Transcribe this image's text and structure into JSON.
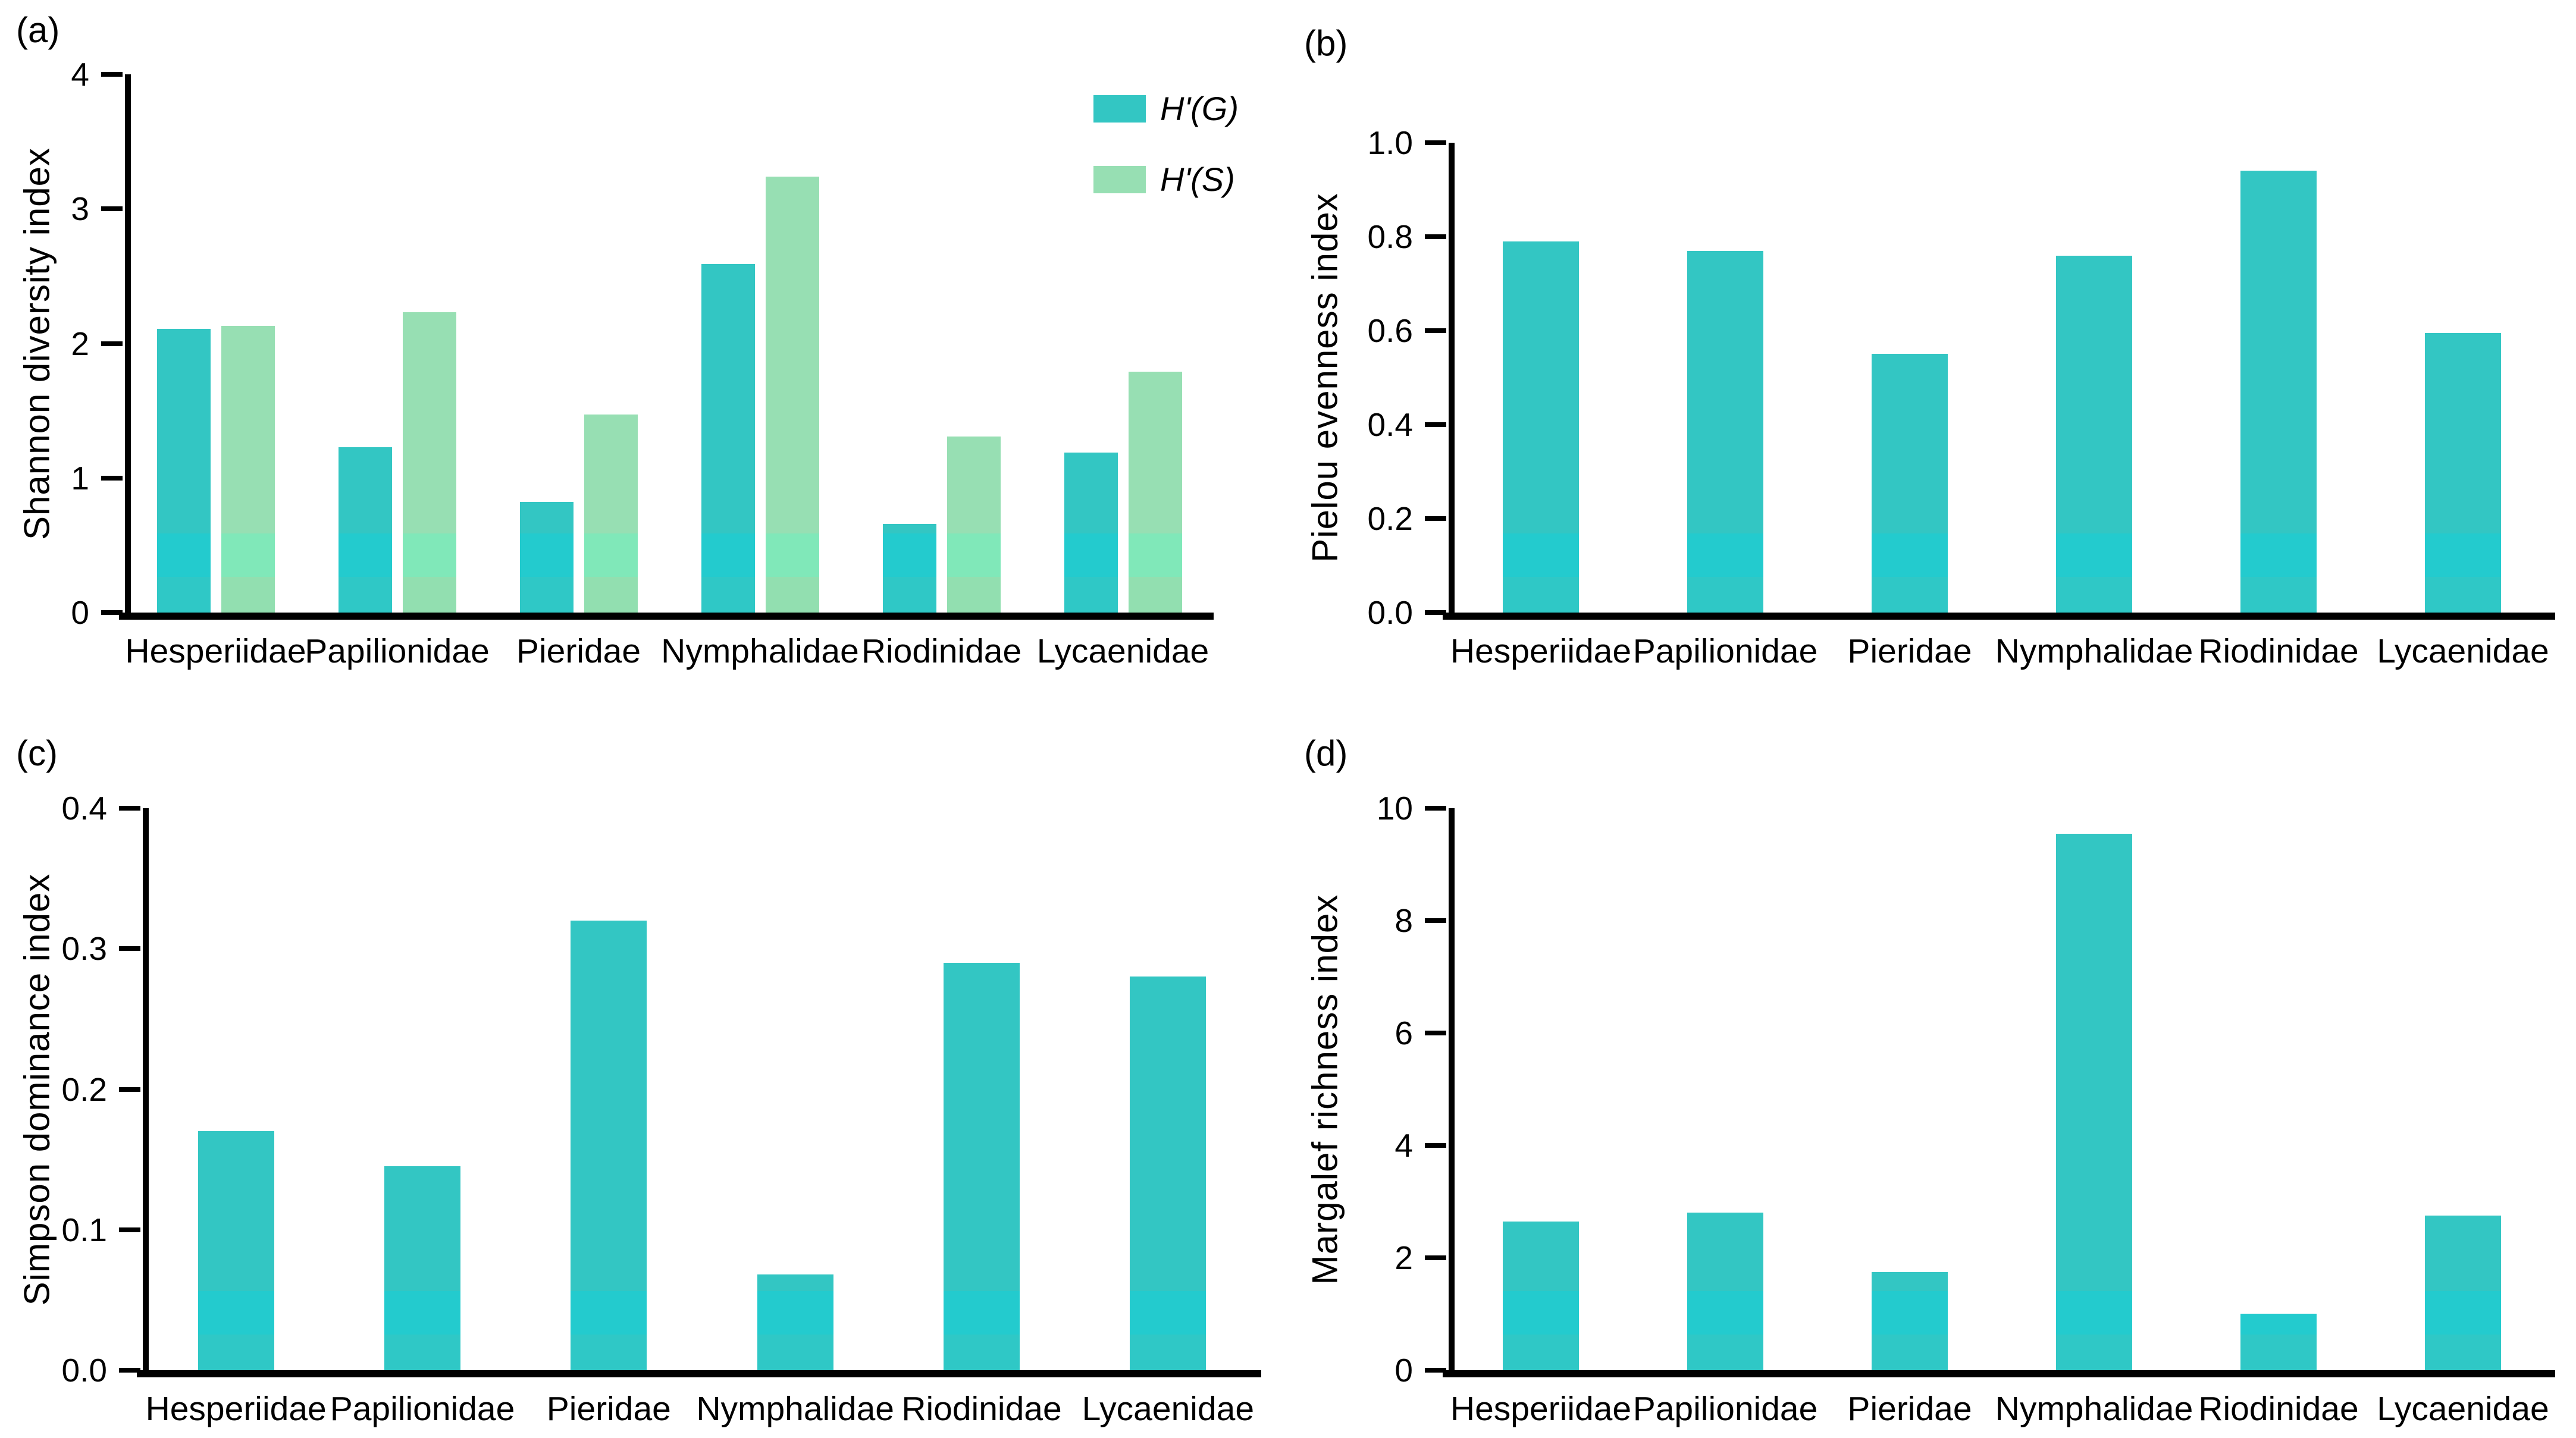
{
  "colors": {
    "teal_main": "#33C6C3",
    "teal_band_bright": "#23CBCE",
    "teal_band_low": "#2FC8C6",
    "green_main": "#97DFB3",
    "green_band_bright": "#80E8B9",
    "green_band_low": "#92DFB0",
    "axis": "#000000",
    "text": "#000000"
  },
  "chart_data": [
    {
      "type": "bar",
      "panel_label": "(a)",
      "ylabel": "Shannon diversity index",
      "xlabel": "",
      "categories": [
        "Hesperiidae",
        "Papilionidae",
        "Pieridae",
        "Nymphalidae",
        "Riodinidae",
        "Lycaenidae"
      ],
      "series": [
        {
          "name": "H'(G)",
          "color_key": "teal",
          "values": [
            2.11,
            1.23,
            0.82,
            2.59,
            0.66,
            1.19
          ]
        },
        {
          "name": "H'(S)",
          "color_key": "green",
          "values": [
            2.13,
            2.23,
            1.47,
            3.24,
            1.31,
            1.79
          ]
        }
      ],
      "ylim": [
        0,
        4
      ],
      "ytick_values": [
        0,
        1,
        2,
        3,
        4
      ],
      "ytick_labels": [
        "0",
        "1",
        "2",
        "3",
        "4"
      ],
      "grid": false,
      "legend_position": "top-right"
    },
    {
      "type": "bar",
      "panel_label": "(b)",
      "ylabel": "Pielou evenness index",
      "xlabel": "",
      "categories": [
        "Hesperiidae",
        "Papilionidae",
        "Pieridae",
        "Nymphalidae",
        "Riodinidae",
        "Lycaenidae"
      ],
      "series": [
        {
          "name": "Pielou evenness",
          "color_key": "teal",
          "values": [
            0.79,
            0.77,
            0.55,
            0.76,
            0.94,
            0.595
          ]
        }
      ],
      "ylim": [
        0,
        1.0
      ],
      "ytick_values": [
        0,
        0.2,
        0.4,
        0.6,
        0.8,
        1.0
      ],
      "ytick_labels": [
        "0.0",
        "0.2",
        "0.4",
        "0.6",
        "0.8",
        "1.0"
      ],
      "grid": false,
      "legend_position": "none"
    },
    {
      "type": "bar",
      "panel_label": "(c)",
      "ylabel": "Simpson dominance index",
      "xlabel": "",
      "categories": [
        "Hesperiidae",
        "Papilionidae",
        "Pieridae",
        "Nymphalidae",
        "Riodinidae",
        "Lycaenidae"
      ],
      "series": [
        {
          "name": "Simpson dominance",
          "color_key": "teal",
          "values": [
            0.17,
            0.145,
            0.32,
            0.068,
            0.29,
            0.28
          ]
        }
      ],
      "ylim": [
        0,
        0.4
      ],
      "ytick_values": [
        0,
        0.1,
        0.2,
        0.3,
        0.4
      ],
      "ytick_labels": [
        "0.0",
        "0.1",
        "0.2",
        "0.3",
        "0.4"
      ],
      "grid": false,
      "legend_position": "none"
    },
    {
      "type": "bar",
      "panel_label": "(d)",
      "ylabel": "Margalef richness index",
      "xlabel": "",
      "categories": [
        "Hesperiidae",
        "Papilionidae",
        "Pieridae",
        "Nymphalidae",
        "Riodinidae",
        "Lycaenidae"
      ],
      "series": [
        {
          "name": "Margalef richness",
          "color_key": "teal",
          "values": [
            2.65,
            2.8,
            1.75,
            9.55,
            1.0,
            2.75
          ]
        }
      ],
      "ylim": [
        0,
        10
      ],
      "ytick_values": [
        0,
        2,
        4,
        6,
        8,
        10
      ],
      "ytick_labels": [
        "0",
        "2",
        "4",
        "6",
        "8",
        "10"
      ],
      "grid": false,
      "legend_position": "none"
    }
  ]
}
